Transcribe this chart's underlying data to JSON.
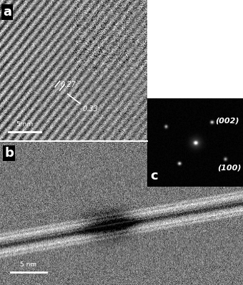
{
  "fig_width": 3.4,
  "fig_height": 4.0,
  "dpi": 100,
  "bg_color": "#ffffff",
  "panel_a": {
    "label": "a",
    "label_color": "#ffffff",
    "label_fontsize": 13,
    "scale_bar_text": "5 nm",
    "scale_bar_color": "#ffffff",
    "line1_label": "0.27",
    "line2_label": "0.33",
    "annotation_color": "#ffffff",
    "annotation_fontsize": 7
  },
  "panel_b": {
    "label": "b",
    "label_color": "#ffffff",
    "label_fontsize": 13,
    "scale_bar_text": "5 nm",
    "scale_bar_color": "#ffffff"
  },
  "panel_c": {
    "label": "c",
    "label_color": "#ffffff",
    "label_fontsize": 13,
    "bg_color": "#000000",
    "spot1_label": "(002)",
    "spot2_label": "(100)",
    "annotation_color": "#ffffff",
    "annotation_fontsize": 8
  },
  "separator_color": "#cccccc"
}
